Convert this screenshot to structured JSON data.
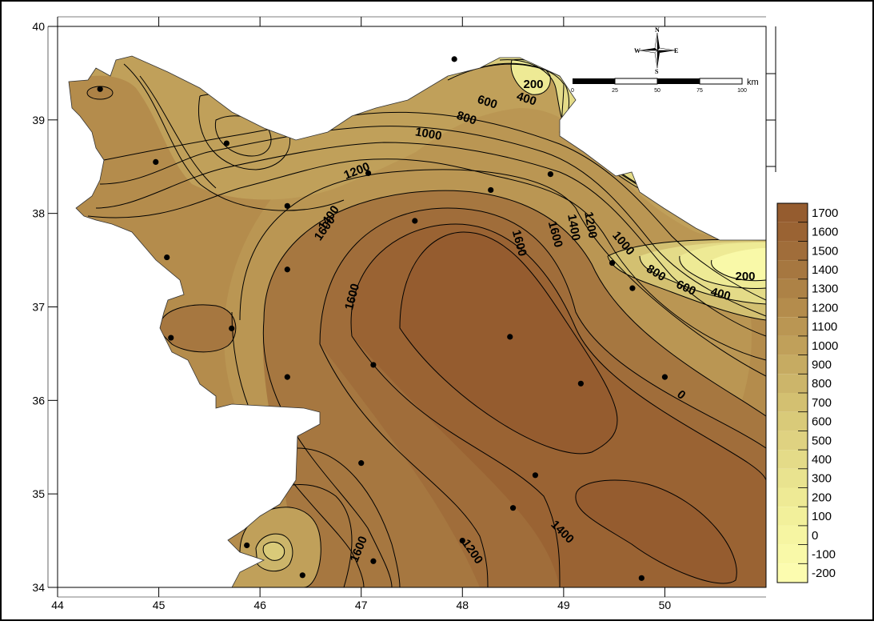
{
  "map": {
    "x_ticks": [
      "44",
      "45",
      "46",
      "47",
      "48",
      "49",
      "50"
    ],
    "y_ticks": [
      "34",
      "35",
      "36",
      "37",
      "38",
      "39",
      "40"
    ],
    "x_range": [
      44,
      51
    ],
    "y_range": [
      34,
      40
    ],
    "contour_labels": [
      "200",
      "400",
      "600",
      "800",
      "1000",
      "1200",
      "1400",
      "1600",
      "1600",
      "1600",
      "1400",
      "1200",
      "1000",
      "800",
      "600",
      "400",
      "200",
      "0",
      "1600",
      "1200",
      "1400",
      "1600"
    ],
    "stations": [
      [
        44.42,
        39.33
      ],
      [
        47.92,
        39.65
      ],
      [
        45.67,
        38.75
      ],
      [
        44.97,
        38.55
      ],
      [
        47.07,
        38.43
      ],
      [
        48.87,
        38.42
      ],
      [
        46.27,
        38.08
      ],
      [
        48.28,
        38.25
      ],
      [
        47.53,
        37.92
      ],
      [
        45.08,
        37.53
      ],
      [
        49.48,
        37.47
      ],
      [
        46.27,
        37.4
      ],
      [
        49.68,
        37.2
      ],
      [
        45.72,
        36.77
      ],
      [
        45.12,
        36.67
      ],
      [
        48.47,
        36.68
      ],
      [
        47.12,
        36.38
      ],
      [
        46.27,
        36.25
      ],
      [
        49.17,
        36.18
      ],
      [
        50.0,
        36.25
      ],
      [
        47.0,
        35.33
      ],
      [
        48.72,
        35.2
      ],
      [
        48.5,
        34.85
      ],
      [
        45.87,
        34.45
      ],
      [
        48.0,
        34.5
      ],
      [
        47.12,
        34.28
      ],
      [
        46.42,
        34.13
      ],
      [
        49.77,
        34.1
      ]
    ]
  },
  "legend": {
    "levels": [
      "1700",
      "1600",
      "1500",
      "1400",
      "1300",
      "1200",
      "1100",
      "1000",
      "900",
      "800",
      "700",
      "600",
      "500",
      "400",
      "300",
      "200",
      "100",
      "0",
      "-100",
      "-200"
    ],
    "colors": [
      "#955c2f",
      "#9a6333",
      "#a06d3a",
      "#a67740",
      "#ad8246",
      "#b48c4c",
      "#ba9653",
      "#c0a05a",
      "#c6ab62",
      "#ccb56a",
      "#d3c071",
      "#d9ca79",
      "#dfd281",
      "#e4db88",
      "#e9e38f",
      "#eeea95",
      "#f2f09b",
      "#f6f5a2",
      "#f9f9a8",
      "#fcfcaf"
    ]
  },
  "scale_bar": {
    "ticks": [
      "0",
      "25",
      "50",
      "75",
      "100"
    ],
    "unit": "km"
  },
  "compass": {
    "n": "N",
    "s": "S",
    "e": "E",
    "w": "W"
  }
}
